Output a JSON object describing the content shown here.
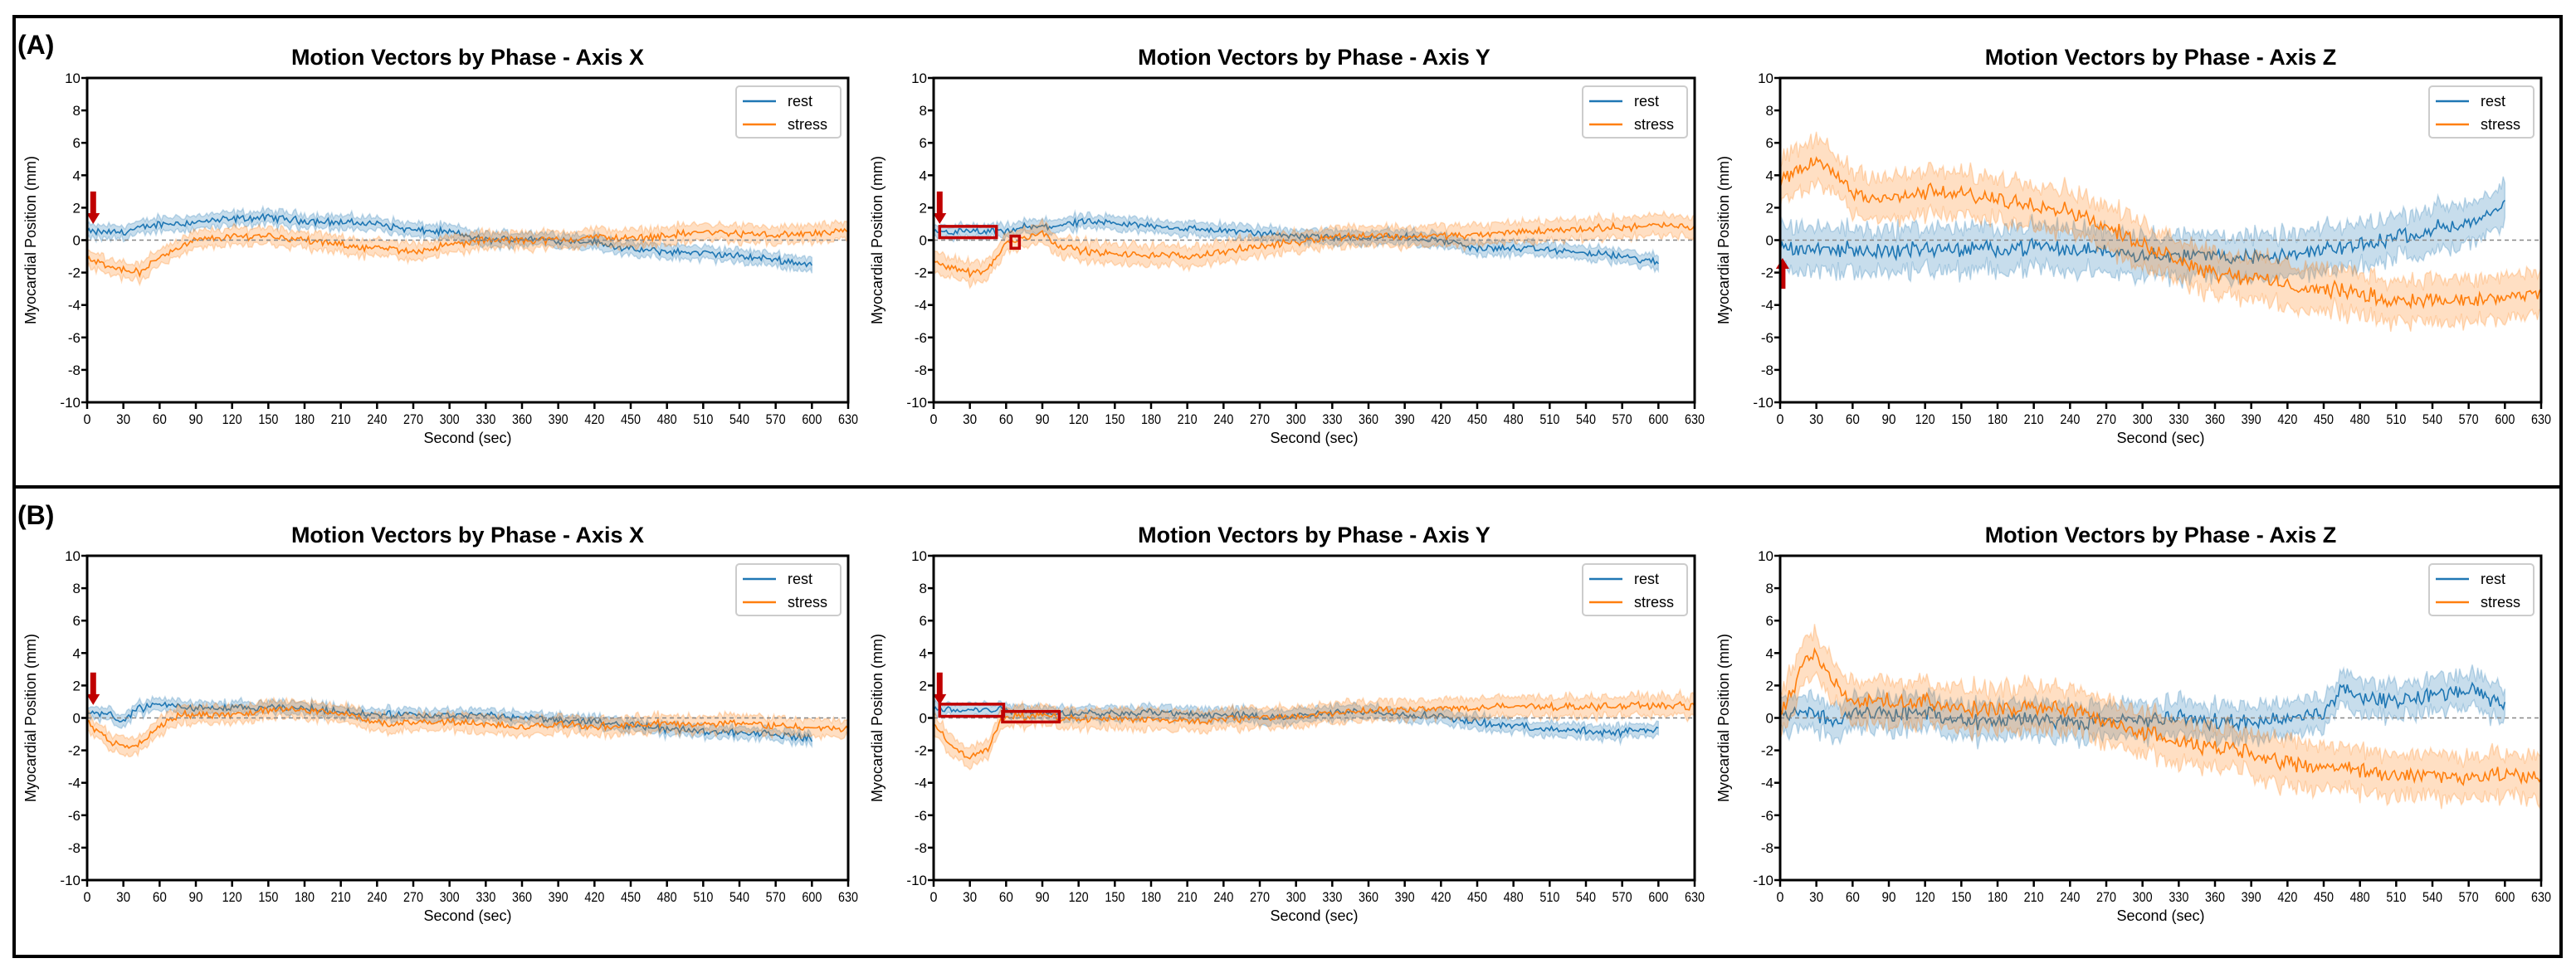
{
  "figure": {
    "panels": [
      {
        "label": "(A)"
      },
      {
        "label": "(B)"
      }
    ],
    "colors": {
      "rest": "#1f77b4",
      "stress": "#ff7f0e",
      "annotation": "#c00000",
      "zero_line": "#888888"
    }
  },
  "chart_data": [
    {
      "panel": "(A)",
      "type": "line",
      "title": "Motion Vectors by Phase - Axis X",
      "xlabel": "Second (sec)",
      "ylabel": "Myocardial Position (mm)",
      "xlim": [
        0,
        630
      ],
      "ylim": [
        -10,
        10
      ],
      "xticks": [
        "0",
        "30",
        "60",
        "90",
        "120",
        "150",
        "180",
        "210",
        "240",
        "270",
        "300",
        "330",
        "360",
        "390",
        "420",
        "450",
        "480",
        "510",
        "540",
        "570",
        "600",
        "630"
      ],
      "yticks": [
        "-10",
        "-8",
        "-6",
        "-4",
        "-2",
        "0",
        "2",
        "4",
        "6",
        "8",
        "10"
      ],
      "legend": "top-right",
      "grid": false,
      "reference_line_y": 0,
      "band": "shaded confidence interval",
      "series": [
        {
          "name": "rest",
          "ci": 0.4,
          "x": [
            0,
            30,
            60,
            90,
            120,
            150,
            180,
            210,
            240,
            270,
            300,
            330,
            360,
            390,
            420,
            450,
            480,
            510,
            540,
            570,
            600
          ],
          "y": [
            0.5,
            0.5,
            1.0,
            1.1,
            1.3,
            1.4,
            1.2,
            1.1,
            1.0,
            0.6,
            0.5,
            0.0,
            0.1,
            0.0,
            -0.1,
            -0.6,
            -0.7,
            -0.8,
            -1.0,
            -1.2,
            -1.5
          ]
        },
        {
          "name": "stress",
          "ci": 0.5,
          "x": [
            0,
            30,
            45,
            60,
            90,
            120,
            150,
            180,
            210,
            240,
            270,
            300,
            330,
            360,
            390,
            420,
            450,
            480,
            510,
            540,
            570,
            600,
            630
          ],
          "y": [
            -1.2,
            -1.8,
            -2.0,
            -1.0,
            0.0,
            0.2,
            0.3,
            0.0,
            -0.3,
            -0.5,
            -0.7,
            -0.3,
            0.0,
            0.0,
            0.0,
            0.2,
            0.1,
            0.3,
            0.5,
            0.4,
            0.3,
            0.4,
            0.5
          ]
        }
      ],
      "annotations": [
        {
          "type": "arrow-down",
          "x": 5,
          "y_from": 3.0,
          "y_to": 1.0
        }
      ]
    },
    {
      "panel": "(A)",
      "type": "line",
      "title": "Motion Vectors by Phase - Axis Y",
      "xlabel": "Second (sec)",
      "ylabel": "Myocardial Position (mm)",
      "xlim": [
        0,
        630
      ],
      "ylim": [
        -10,
        10
      ],
      "xticks": [
        "0",
        "30",
        "60",
        "90",
        "120",
        "150",
        "180",
        "210",
        "240",
        "270",
        "300",
        "330",
        "360",
        "390",
        "420",
        "450",
        "480",
        "510",
        "540",
        "570",
        "600",
        "630"
      ],
      "yticks": [
        "-10",
        "-8",
        "-6",
        "-4",
        "-2",
        "0",
        "2",
        "4",
        "6",
        "8",
        "10"
      ],
      "legend": "top-right",
      "grid": false,
      "reference_line_y": 0,
      "band": "shaded confidence interval",
      "series": [
        {
          "name": "rest",
          "ci": 0.4,
          "x": [
            0,
            30,
            60,
            75,
            90,
            120,
            150,
            180,
            210,
            240,
            270,
            300,
            330,
            360,
            390,
            420,
            450,
            480,
            510,
            540,
            570,
            600
          ],
          "y": [
            0.5,
            0.5,
            0.5,
            0.8,
            0.8,
            1.1,
            1.0,
            0.9,
            0.7,
            0.6,
            0.4,
            0.3,
            0.2,
            0.2,
            0.2,
            0.0,
            -0.5,
            -0.5,
            -0.6,
            -0.8,
            -1.0,
            -1.4
          ]
        },
        {
          "name": "stress",
          "ci": 0.6,
          "x": [
            0,
            30,
            45,
            60,
            90,
            105,
            120,
            150,
            180,
            210,
            240,
            270,
            300,
            330,
            360,
            390,
            420,
            450,
            480,
            510,
            540,
            570,
            600,
            630
          ],
          "y": [
            -1.3,
            -2.0,
            -1.8,
            -0.2,
            0.5,
            -0.4,
            -0.6,
            -0.9,
            -0.9,
            -1.0,
            -0.7,
            -0.4,
            -0.1,
            0.2,
            0.3,
            0.2,
            0.3,
            0.3,
            0.5,
            0.6,
            0.7,
            0.8,
            0.9,
            0.8
          ]
        }
      ],
      "annotations": [
        {
          "type": "arrow-down",
          "x": 5,
          "y_from": 3.0,
          "y_to": 1.0
        },
        {
          "type": "box",
          "x0": 5,
          "x1": 52,
          "y0": 0.15,
          "y1": 0.85
        },
        {
          "type": "box",
          "x0": 64,
          "x1": 71,
          "y0": -0.5,
          "y1": 0.25
        }
      ]
    },
    {
      "panel": "(A)",
      "type": "line",
      "title": "Motion Vectors by Phase - Axis Z",
      "xlabel": "Second (sec)",
      "ylabel": "Myocardial Position (mm)",
      "xlim": [
        0,
        630
      ],
      "ylim": [
        -10,
        10
      ],
      "xticks": [
        "0",
        "30",
        "60",
        "90",
        "120",
        "150",
        "180",
        "210",
        "240",
        "270",
        "300",
        "330",
        "360",
        "390",
        "420",
        "450",
        "480",
        "510",
        "540",
        "570",
        "600",
        "630"
      ],
      "yticks": [
        "-10",
        "-8",
        "-6",
        "-4",
        "-2",
        "0",
        "2",
        "4",
        "6",
        "8",
        "10"
      ],
      "legend": "top-right",
      "grid": false,
      "reference_line_y": 0,
      "band": "shaded confidence interval",
      "series": [
        {
          "name": "rest",
          "ci": 1.3,
          "x": [
            0,
            30,
            60,
            90,
            120,
            150,
            180,
            210,
            240,
            270,
            300,
            330,
            360,
            390,
            420,
            450,
            480,
            510,
            540,
            570,
            600
          ],
          "y": [
            -0.4,
            -0.5,
            -0.6,
            -0.7,
            -0.5,
            -0.6,
            -0.5,
            -0.4,
            -0.6,
            -0.6,
            -0.9,
            -1.0,
            -0.9,
            -1.1,
            -1.0,
            -0.6,
            -0.3,
            0.2,
            0.7,
            1.0,
            2.0
          ]
        },
        {
          "name": "stress",
          "ci": 1.3,
          "x": [
            0,
            20,
            30,
            60,
            90,
            120,
            150,
            180,
            210,
            240,
            270,
            300,
            330,
            360,
            390,
            420,
            450,
            480,
            510,
            540,
            570,
            600,
            630
          ],
          "y": [
            3.5,
            4.5,
            5.0,
            3.0,
            2.5,
            3.0,
            2.8,
            2.5,
            2.3,
            1.8,
            0.8,
            -0.2,
            -1.2,
            -2.0,
            -2.3,
            -2.8,
            -3.0,
            -3.3,
            -3.8,
            -3.6,
            -3.8,
            -3.5,
            -3.2
          ]
        }
      ],
      "annotations": [
        {
          "type": "arrow-up",
          "x": 2,
          "y_from": -3.0,
          "y_to": -1.1
        }
      ]
    },
    {
      "panel": "(B)",
      "type": "line",
      "title": "Motion Vectors by Phase - Axis X",
      "xlabel": "Second (sec)",
      "ylabel": "Myocardial Position (mm)",
      "xlim": [
        0,
        630
      ],
      "ylim": [
        -10,
        10
      ],
      "xticks": [
        "0",
        "30",
        "60",
        "90",
        "120",
        "150",
        "180",
        "210",
        "240",
        "270",
        "300",
        "330",
        "360",
        "390",
        "420",
        "450",
        "480",
        "510",
        "540",
        "570",
        "600",
        "630"
      ],
      "yticks": [
        "-10",
        "-8",
        "-6",
        "-4",
        "-2",
        "0",
        "2",
        "4",
        "6",
        "8",
        "10"
      ],
      "legend": "top-right",
      "grid": false,
      "reference_line_y": 0,
      "band": "shaded confidence interval",
      "series": [
        {
          "name": "rest",
          "ci": 0.35,
          "x": [
            0,
            15,
            30,
            40,
            60,
            90,
            120,
            150,
            180,
            210,
            240,
            270,
            300,
            330,
            360,
            390,
            420,
            450,
            480,
            510,
            540,
            570,
            600
          ],
          "y": [
            0.3,
            0.3,
            -0.3,
            0.5,
            0.9,
            0.6,
            0.6,
            0.6,
            0.6,
            0.4,
            0.2,
            0.2,
            0.1,
            0.2,
            0.0,
            -0.1,
            -0.3,
            -0.4,
            -0.7,
            -0.8,
            -0.9,
            -1.0,
            -1.3
          ]
        },
        {
          "name": "stress",
          "ci": 0.5,
          "x": [
            0,
            20,
            40,
            60,
            75,
            90,
            120,
            150,
            180,
            210,
            240,
            270,
            300,
            330,
            360,
            390,
            420,
            450,
            480,
            510,
            540,
            570,
            600,
            630
          ],
          "y": [
            -0.3,
            -1.5,
            -1.8,
            -0.5,
            0.2,
            0.2,
            0.2,
            0.5,
            0.5,
            0.3,
            -0.3,
            -0.3,
            -0.2,
            -0.4,
            -0.6,
            -0.4,
            -0.5,
            -0.5,
            -0.3,
            -0.4,
            -0.3,
            -0.5,
            -0.6,
            -0.7
          ]
        }
      ],
      "annotations": [
        {
          "type": "arrow-down",
          "x": 5,
          "y_from": 2.8,
          "y_to": 0.8
        }
      ]
    },
    {
      "panel": "(B)",
      "type": "line",
      "title": "Motion Vectors by Phase - Axis Y",
      "xlabel": "Second (sec)",
      "ylabel": "Myocardial Position (mm)",
      "xlim": [
        0,
        630
      ],
      "ylim": [
        -10,
        10
      ],
      "xticks": [
        "0",
        "30",
        "60",
        "90",
        "120",
        "150",
        "180",
        "210",
        "240",
        "270",
        "300",
        "330",
        "360",
        "390",
        "420",
        "450",
        "480",
        "510",
        "540",
        "570",
        "600",
        "630"
      ],
      "yticks": [
        "-10",
        "-8",
        "-6",
        "-4",
        "-2",
        "0",
        "2",
        "4",
        "6",
        "8",
        "10"
      ],
      "legend": "top-right",
      "grid": false,
      "reference_line_y": 0,
      "band": "shaded confidence interval",
      "series": [
        {
          "name": "rest",
          "ci": 0.4,
          "x": [
            0,
            30,
            60,
            90,
            120,
            150,
            180,
            210,
            240,
            270,
            300,
            330,
            360,
            390,
            420,
            450,
            480,
            510,
            540,
            570,
            600
          ],
          "y": [
            0.5,
            0.5,
            0.5,
            0.3,
            0.3,
            0.3,
            0.4,
            0.2,
            0.2,
            0.1,
            0.1,
            0.3,
            0.4,
            0.2,
            0.1,
            -0.3,
            -0.5,
            -0.7,
            -0.8,
            -0.9,
            -0.7
          ]
        },
        {
          "name": "stress",
          "ci": 0.6,
          "x": [
            0,
            15,
            30,
            45,
            55,
            60,
            90,
            120,
            150,
            180,
            210,
            240,
            270,
            300,
            330,
            360,
            390,
            420,
            450,
            480,
            510,
            540,
            570,
            600,
            630
          ],
          "y": [
            -0.3,
            -1.8,
            -2.4,
            -2.0,
            -0.2,
            0.1,
            0.1,
            -0.1,
            0.0,
            -0.1,
            -0.2,
            -0.1,
            0.0,
            0.1,
            0.3,
            0.4,
            0.5,
            0.6,
            0.6,
            0.7,
            0.7,
            0.7,
            0.7,
            0.8,
            0.7
          ]
        }
      ],
      "annotations": [
        {
          "type": "arrow-down",
          "x": 5,
          "y_from": 2.8,
          "y_to": 0.8
        },
        {
          "type": "box",
          "x0": 5,
          "x1": 58,
          "y0": 0.1,
          "y1": 0.85
        },
        {
          "type": "box",
          "x0": 57,
          "x1": 104,
          "y0": -0.25,
          "y1": 0.4
        }
      ]
    },
    {
      "panel": "(B)",
      "type": "line",
      "title": "Motion Vectors by Phase - Axis Z",
      "xlabel": "Second (sec)",
      "ylabel": "Myocardial Position (mm)",
      "xlim": [
        0,
        630
      ],
      "ylim": [
        -10,
        10
      ],
      "xticks": [
        "0",
        "30",
        "60",
        "90",
        "120",
        "150",
        "180",
        "210",
        "240",
        "270",
        "300",
        "330",
        "360",
        "390",
        "420",
        "450",
        "480",
        "510",
        "540",
        "570",
        "600",
        "630"
      ],
      "yticks": [
        "-10",
        "-8",
        "-6",
        "-4",
        "-2",
        "0",
        "2",
        "4",
        "6",
        "8",
        "10"
      ],
      "legend": "top-right",
      "grid": false,
      "reference_line_y": 0,
      "band": "shaded confidence interval",
      "series": [
        {
          "name": "rest",
          "ci": 1.0,
          "x": [
            0,
            30,
            45,
            60,
            90,
            120,
            150,
            180,
            210,
            240,
            270,
            300,
            330,
            360,
            390,
            420,
            450,
            465,
            480,
            510,
            540,
            570,
            600
          ],
          "y": [
            0.2,
            0.4,
            -0.5,
            0.5,
            0.2,
            0.3,
            -0.2,
            -0.2,
            -0.1,
            -0.2,
            -0.2,
            -0.1,
            0.0,
            -0.2,
            -0.3,
            0.0,
            0.3,
            2.0,
            1.2,
            1.0,
            1.4,
            1.8,
            0.8
          ]
        },
        {
          "name": "stress",
          "ci": 1.3,
          "x": [
            0,
            20,
            30,
            45,
            60,
            90,
            120,
            150,
            180,
            210,
            240,
            270,
            300,
            330,
            360,
            390,
            420,
            450,
            480,
            510,
            540,
            570,
            600,
            630
          ],
          "y": [
            0.0,
            3.5,
            4.0,
            2.0,
            1.0,
            1.0,
            1.0,
            0.5,
            0.5,
            0.6,
            0.5,
            -0.2,
            -0.8,
            -1.5,
            -1.8,
            -2.0,
            -2.8,
            -3.0,
            -3.2,
            -3.5,
            -3.5,
            -3.6,
            -3.5,
            -3.8
          ]
        }
      ],
      "annotations": []
    }
  ]
}
